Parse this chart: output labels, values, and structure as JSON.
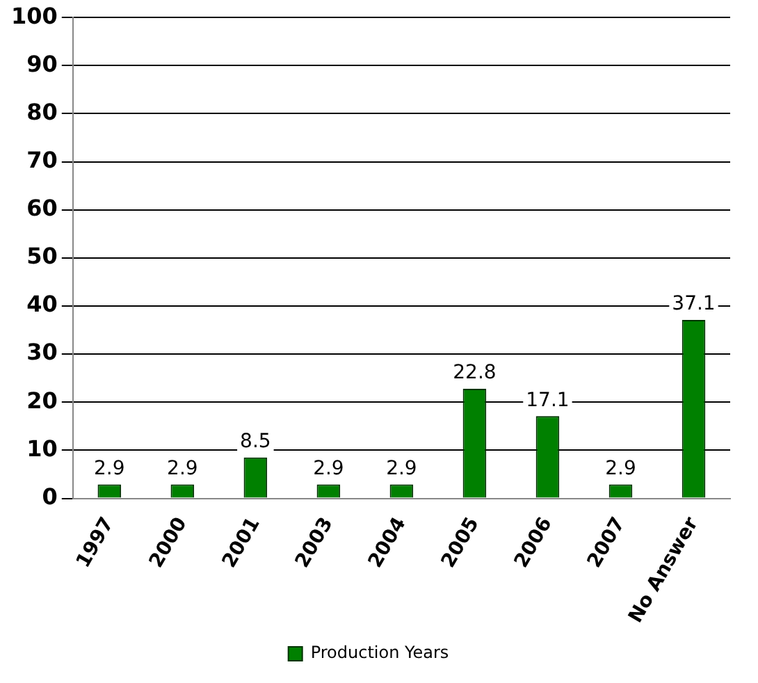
{
  "chart_data": {
    "type": "bar",
    "categories": [
      "1997",
      "2000",
      "2001",
      "2003",
      "2004",
      "2005",
      "2006",
      "2007",
      "No Answer"
    ],
    "series": [
      {
        "name": "Production Years",
        "color": "#008000",
        "values": [
          2.9,
          2.9,
          8.5,
          2.9,
          2.9,
          22.8,
          17.1,
          2.9,
          37.1
        ]
      }
    ],
    "ylim": [
      0,
      100
    ],
    "yticks": [
      0,
      10,
      20,
      30,
      40,
      50,
      60,
      70,
      80,
      90,
      100
    ],
    "grid": "y",
    "legend": "bottom",
    "data_labels": true
  }
}
